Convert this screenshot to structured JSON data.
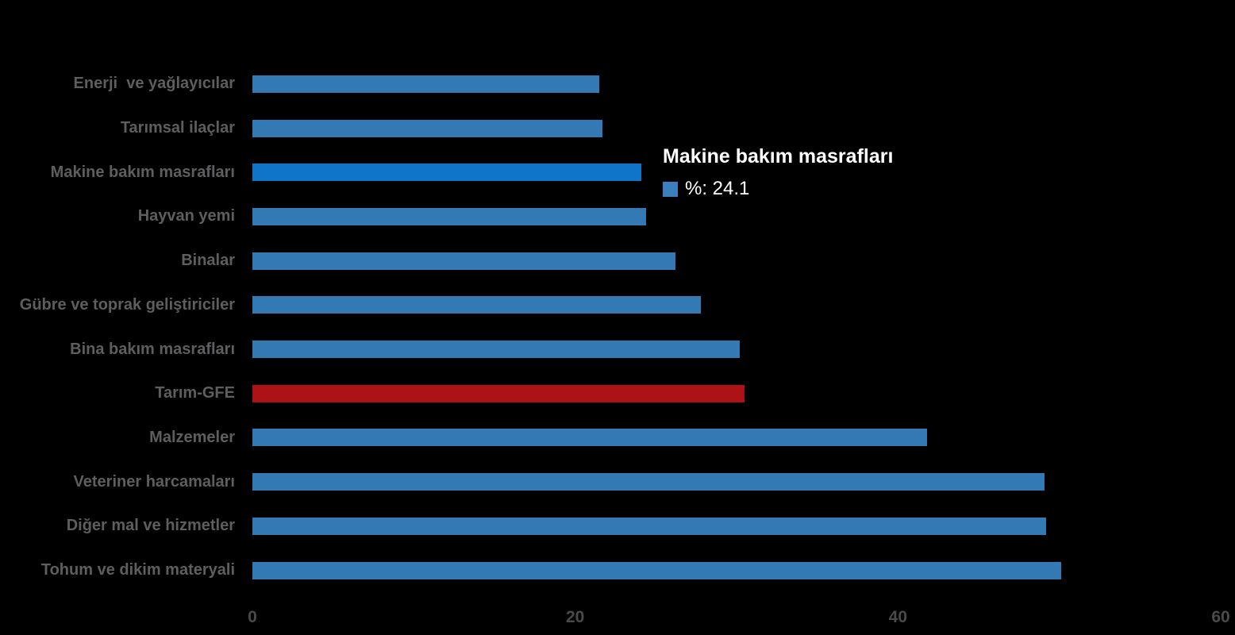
{
  "chart_data": {
    "type": "bar",
    "orientation": "horizontal",
    "title": "",
    "xlabel": "",
    "ylabel": "",
    "categories": [
      "Enerji  ve yağlayıcılar",
      "Tarımsal ilaçlar",
      "Makine bakım masrafları",
      "Hayvan yemi",
      "Binalar",
      "Gübre ve toprak geliştiriciler",
      "Bina bakım masrafları",
      "Tarım-GFE",
      "Malzemeler",
      "Veteriner harcamaları",
      "Diğer mal ve hizmetler",
      "Tohum ve dikim materyali"
    ],
    "series": [
      {
        "name": "%",
        "values": [
          21.5,
          21.7,
          24.1,
          24.4,
          26.2,
          27.8,
          30.2,
          30.5,
          41.8,
          49.1,
          49.2,
          50.1
        ]
      }
    ],
    "bar_states": [
      "default",
      "default",
      "hover",
      "default",
      "default",
      "default",
      "default",
      "emphasis",
      "default",
      "default",
      "default",
      "default"
    ],
    "xlim": [
      0,
      60
    ],
    "xticks": [
      "0",
      "20",
      "40",
      "60"
    ],
    "xtick_values": [
      0,
      20,
      40,
      60
    ],
    "grid": false,
    "legend": false,
    "tooltip": {
      "title": "Makine bakım masrafları",
      "value_text": "%: 24.1",
      "swatch_color": "#3b7fbe"
    },
    "colors": {
      "bar_default": "#337ab5",
      "bar_hover": "#0f75c8",
      "bar_emphasis": "#ad1217",
      "background": "#000000",
      "category_label": "#5e5e60",
      "axis_label": "#4a4a4a",
      "tooltip_text": "#ffffff"
    }
  }
}
